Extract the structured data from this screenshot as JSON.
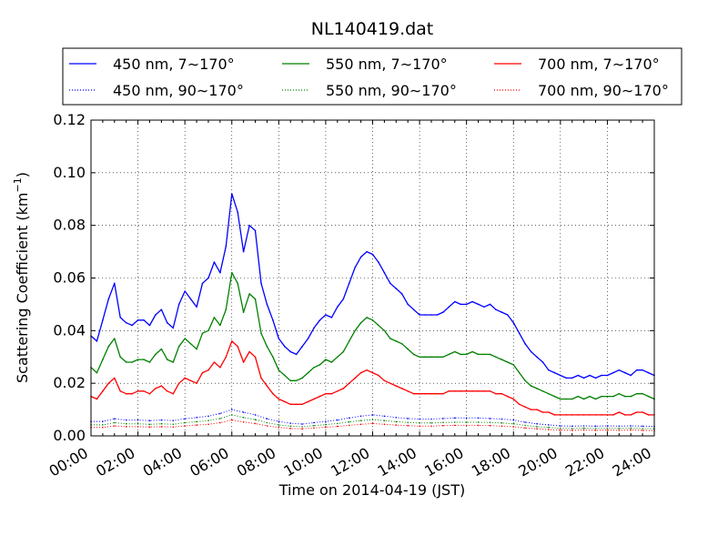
{
  "chart_data": {
    "type": "line",
    "title": "NL140419.dat",
    "xlabel": "Time on 2014-04-19 (JST)",
    "ylabel_main": "Scattering Coefficient (km",
    "ylabel_sup": "−1",
    "ylabel_end": ")",
    "xlim": [
      0,
      24
    ],
    "ylim": [
      0,
      0.12
    ],
    "xticks": [
      0,
      2,
      4,
      6,
      8,
      10,
      12,
      14,
      16,
      18,
      20,
      22,
      24
    ],
    "xtick_labels": [
      "00:00",
      "02:00",
      "04:00",
      "06:00",
      "08:00",
      "10:00",
      "12:00",
      "14:00",
      "16:00",
      "18:00",
      "20:00",
      "22:00",
      "24:00"
    ],
    "yticks": [
      0,
      0.02,
      0.04,
      0.06,
      0.08,
      0.1,
      0.12
    ],
    "ytick_labels": [
      "0.00",
      "0.02",
      "0.04",
      "0.06",
      "0.08",
      "0.10",
      "0.12"
    ],
    "grid": true,
    "legend_position": "top",
    "series": [
      {
        "name": "450 nm, 7∼170°",
        "color": "#0000ff",
        "style": "solid",
        "x": [
          0,
          0.25,
          0.5,
          0.75,
          1,
          1.25,
          1.5,
          1.75,
          2,
          2.25,
          2.5,
          2.75,
          3,
          3.25,
          3.5,
          3.75,
          4,
          4.25,
          4.5,
          4.75,
          5,
          5.25,
          5.5,
          5.75,
          6,
          6.25,
          6.5,
          6.75,
          7,
          7.25,
          7.5,
          7.75,
          8,
          8.25,
          8.5,
          8.75,
          9,
          9.25,
          9.5,
          9.75,
          10,
          10.25,
          10.5,
          10.75,
          11,
          11.25,
          11.5,
          11.75,
          12,
          12.25,
          12.5,
          12.75,
          13,
          13.25,
          13.5,
          13.75,
          14,
          14.25,
          14.5,
          14.75,
          15,
          15.25,
          15.5,
          15.75,
          16,
          16.25,
          16.5,
          16.75,
          17,
          17.25,
          17.5,
          17.75,
          18,
          18.25,
          18.5,
          18.75,
          19,
          19.25,
          19.5,
          19.75,
          20,
          20.25,
          20.5,
          20.75,
          21,
          21.25,
          21.5,
          21.75,
          22,
          22.25,
          22.5,
          22.75,
          23,
          23.25,
          23.5,
          23.75,
          24
        ],
        "values": [
          0.038,
          0.036,
          0.044,
          0.052,
          0.058,
          0.045,
          0.043,
          0.042,
          0.044,
          0.044,
          0.042,
          0.046,
          0.048,
          0.043,
          0.041,
          0.05,
          0.055,
          0.052,
          0.049,
          0.058,
          0.06,
          0.066,
          0.062,
          0.072,
          0.092,
          0.085,
          0.07,
          0.08,
          0.078,
          0.058,
          0.05,
          0.044,
          0.037,
          0.034,
          0.032,
          0.031,
          0.034,
          0.037,
          0.041,
          0.044,
          0.046,
          0.045,
          0.049,
          0.052,
          0.058,
          0.064,
          0.068,
          0.07,
          0.069,
          0.066,
          0.062,
          0.058,
          0.056,
          0.054,
          0.05,
          0.048,
          0.046,
          0.046,
          0.046,
          0.046,
          0.047,
          0.049,
          0.051,
          0.05,
          0.05,
          0.051,
          0.05,
          0.049,
          0.05,
          0.048,
          0.047,
          0.046,
          0.043,
          0.039,
          0.035,
          0.032,
          0.03,
          0.028,
          0.025,
          0.024,
          0.023,
          0.022,
          0.022,
          0.023,
          0.022,
          0.023,
          0.022,
          0.023,
          0.023,
          0.024,
          0.025,
          0.024,
          0.023,
          0.025,
          0.025,
          0.024,
          0.023
        ]
      },
      {
        "name": "550 nm, 7∼170°",
        "color": "#008000",
        "style": "solid",
        "x": [
          0,
          0.25,
          0.5,
          0.75,
          1,
          1.25,
          1.5,
          1.75,
          2,
          2.25,
          2.5,
          2.75,
          3,
          3.25,
          3.5,
          3.75,
          4,
          4.25,
          4.5,
          4.75,
          5,
          5.25,
          5.5,
          5.75,
          6,
          6.25,
          6.5,
          6.75,
          7,
          7.25,
          7.5,
          7.75,
          8,
          8.25,
          8.5,
          8.75,
          9,
          9.25,
          9.5,
          9.75,
          10,
          10.25,
          10.5,
          10.75,
          11,
          11.25,
          11.5,
          11.75,
          12,
          12.25,
          12.5,
          12.75,
          13,
          13.25,
          13.5,
          13.75,
          14,
          14.25,
          14.5,
          14.75,
          15,
          15.25,
          15.5,
          15.75,
          16,
          16.25,
          16.5,
          16.75,
          17,
          17.25,
          17.5,
          17.75,
          18,
          18.25,
          18.5,
          18.75,
          19,
          19.25,
          19.5,
          19.75,
          20,
          20.25,
          20.5,
          20.75,
          21,
          21.25,
          21.5,
          21.75,
          22,
          22.25,
          22.5,
          22.75,
          23,
          23.25,
          23.5,
          23.75,
          24
        ],
        "values": [
          0.026,
          0.024,
          0.029,
          0.034,
          0.037,
          0.03,
          0.028,
          0.028,
          0.029,
          0.029,
          0.028,
          0.031,
          0.033,
          0.029,
          0.028,
          0.034,
          0.037,
          0.035,
          0.033,
          0.039,
          0.04,
          0.045,
          0.042,
          0.048,
          0.062,
          0.058,
          0.047,
          0.054,
          0.052,
          0.039,
          0.034,
          0.03,
          0.025,
          0.023,
          0.021,
          0.021,
          0.022,
          0.024,
          0.026,
          0.027,
          0.029,
          0.028,
          0.03,
          0.032,
          0.036,
          0.04,
          0.043,
          0.045,
          0.044,
          0.042,
          0.04,
          0.037,
          0.036,
          0.035,
          0.033,
          0.031,
          0.03,
          0.03,
          0.03,
          0.03,
          0.03,
          0.031,
          0.032,
          0.031,
          0.031,
          0.032,
          0.031,
          0.031,
          0.031,
          0.03,
          0.029,
          0.028,
          0.027,
          0.024,
          0.021,
          0.019,
          0.018,
          0.017,
          0.016,
          0.015,
          0.014,
          0.014,
          0.014,
          0.015,
          0.014,
          0.015,
          0.014,
          0.015,
          0.015,
          0.015,
          0.016,
          0.015,
          0.015,
          0.016,
          0.016,
          0.015,
          0.014
        ]
      },
      {
        "name": "700 nm, 7∼170°",
        "color": "#ff0000",
        "style": "solid",
        "x": [
          0,
          0.25,
          0.5,
          0.75,
          1,
          1.25,
          1.5,
          1.75,
          2,
          2.25,
          2.5,
          2.75,
          3,
          3.25,
          3.5,
          3.75,
          4,
          4.25,
          4.5,
          4.75,
          5,
          5.25,
          5.5,
          5.75,
          6,
          6.25,
          6.5,
          6.75,
          7,
          7.25,
          7.5,
          7.75,
          8,
          8.25,
          8.5,
          8.75,
          9,
          9.25,
          9.5,
          9.75,
          10,
          10.25,
          10.5,
          10.75,
          11,
          11.25,
          11.5,
          11.75,
          12,
          12.25,
          12.5,
          12.75,
          13,
          13.25,
          13.5,
          13.75,
          14,
          14.25,
          14.5,
          14.75,
          15,
          15.25,
          15.5,
          15.75,
          16,
          16.25,
          16.5,
          16.75,
          17,
          17.25,
          17.5,
          17.75,
          18,
          18.25,
          18.5,
          18.75,
          19,
          19.25,
          19.5,
          19.75,
          20,
          20.25,
          20.5,
          20.75,
          21,
          21.25,
          21.5,
          21.75,
          22,
          22.25,
          22.5,
          22.75,
          23,
          23.25,
          23.5,
          23.75,
          24
        ],
        "values": [
          0.015,
          0.014,
          0.017,
          0.02,
          0.022,
          0.017,
          0.016,
          0.016,
          0.017,
          0.017,
          0.016,
          0.018,
          0.019,
          0.017,
          0.016,
          0.02,
          0.022,
          0.021,
          0.02,
          0.024,
          0.025,
          0.028,
          0.026,
          0.03,
          0.036,
          0.034,
          0.028,
          0.032,
          0.03,
          0.022,
          0.019,
          0.016,
          0.014,
          0.013,
          0.012,
          0.012,
          0.012,
          0.013,
          0.014,
          0.015,
          0.016,
          0.016,
          0.017,
          0.018,
          0.02,
          0.022,
          0.024,
          0.025,
          0.024,
          0.023,
          0.021,
          0.02,
          0.019,
          0.018,
          0.017,
          0.016,
          0.016,
          0.016,
          0.016,
          0.016,
          0.016,
          0.017,
          0.017,
          0.017,
          0.017,
          0.017,
          0.017,
          0.017,
          0.017,
          0.016,
          0.016,
          0.015,
          0.014,
          0.012,
          0.011,
          0.01,
          0.01,
          0.009,
          0.009,
          0.008,
          0.008,
          0.008,
          0.008,
          0.008,
          0.008,
          0.008,
          0.008,
          0.008,
          0.008,
          0.008,
          0.009,
          0.008,
          0.008,
          0.009,
          0.009,
          0.008,
          0.008
        ]
      },
      {
        "name": "450 nm, 90∼170°",
        "color": "#0000ff",
        "style": "dotted",
        "x": [
          0,
          0.5,
          1,
          1.5,
          2,
          2.5,
          3,
          3.5,
          4,
          4.5,
          5,
          5.5,
          6,
          6.5,
          7,
          7.5,
          8,
          8.5,
          9,
          9.5,
          10,
          10.5,
          11,
          11.5,
          12,
          12.5,
          13,
          13.5,
          14,
          14.5,
          15,
          15.5,
          16,
          16.5,
          17,
          17.5,
          18,
          18.5,
          19,
          19.5,
          20,
          20.5,
          21,
          21.5,
          22,
          22.5,
          23,
          23.5,
          24
        ],
        "values": [
          0.0055,
          0.0055,
          0.0065,
          0.006,
          0.006,
          0.0058,
          0.006,
          0.0058,
          0.0065,
          0.007,
          0.0075,
          0.0085,
          0.01,
          0.009,
          0.008,
          0.0065,
          0.0055,
          0.0048,
          0.0045,
          0.005,
          0.0055,
          0.006,
          0.0068,
          0.0075,
          0.008,
          0.0075,
          0.007,
          0.0066,
          0.0064,
          0.0064,
          0.0066,
          0.0068,
          0.0068,
          0.0068,
          0.0066,
          0.0064,
          0.006,
          0.0052,
          0.0046,
          0.0042,
          0.0038,
          0.0037,
          0.0038,
          0.0037,
          0.0038,
          0.0037,
          0.0038,
          0.0037,
          0.0036
        ]
      },
      {
        "name": "550 nm, 90∼170°",
        "color": "#008000",
        "style": "dotted",
        "x": [
          0,
          0.5,
          1,
          1.5,
          2,
          2.5,
          3,
          3.5,
          4,
          4.5,
          5,
          5.5,
          6,
          6.5,
          7,
          7.5,
          8,
          8.5,
          9,
          9.5,
          10,
          10.5,
          11,
          11.5,
          12,
          12.5,
          13,
          13.5,
          14,
          14.5,
          15,
          15.5,
          16,
          16.5,
          17,
          17.5,
          18,
          18.5,
          19,
          19.5,
          20,
          20.5,
          21,
          21.5,
          22,
          22.5,
          23,
          23.5,
          24
        ],
        "values": [
          0.0042,
          0.0042,
          0.005,
          0.0046,
          0.0046,
          0.0044,
          0.0046,
          0.0044,
          0.005,
          0.0054,
          0.0058,
          0.0066,
          0.008,
          0.007,
          0.0062,
          0.005,
          0.0042,
          0.0037,
          0.0035,
          0.0039,
          0.0043,
          0.0047,
          0.0053,
          0.0058,
          0.0062,
          0.0058,
          0.0054,
          0.0051,
          0.0049,
          0.0049,
          0.0051,
          0.0052,
          0.0052,
          0.0052,
          0.0051,
          0.0049,
          0.0046,
          0.004,
          0.0035,
          0.0032,
          0.0029,
          0.0028,
          0.0029,
          0.0028,
          0.0029,
          0.0028,
          0.0029,
          0.0028,
          0.0027
        ]
      },
      {
        "name": "700 nm, 90∼170°",
        "color": "#ff0000",
        "style": "dotted",
        "x": [
          0,
          0.5,
          1,
          1.5,
          2,
          2.5,
          3,
          3.5,
          4,
          4.5,
          5,
          5.5,
          6,
          6.5,
          7,
          7.5,
          8,
          8.5,
          9,
          9.5,
          10,
          10.5,
          11,
          11.5,
          12,
          12.5,
          13,
          13.5,
          14,
          14.5,
          15,
          15.5,
          16,
          16.5,
          17,
          17.5,
          18,
          18.5,
          19,
          19.5,
          20,
          20.5,
          21,
          21.5,
          22,
          22.5,
          23,
          23.5,
          24
        ],
        "values": [
          0.0032,
          0.0032,
          0.0038,
          0.0035,
          0.0035,
          0.0034,
          0.0035,
          0.0034,
          0.0038,
          0.0041,
          0.0044,
          0.005,
          0.006,
          0.0053,
          0.0047,
          0.0038,
          0.0032,
          0.0028,
          0.0027,
          0.003,
          0.0033,
          0.0036,
          0.004,
          0.0044,
          0.0047,
          0.0044,
          0.0041,
          0.0039,
          0.0037,
          0.0037,
          0.0039,
          0.004,
          0.004,
          0.004,
          0.0039,
          0.0037,
          0.0035,
          0.003,
          0.0027,
          0.0024,
          0.0022,
          0.0021,
          0.0022,
          0.0021,
          0.0022,
          0.0021,
          0.0022,
          0.0021,
          0.002
        ]
      }
    ]
  }
}
